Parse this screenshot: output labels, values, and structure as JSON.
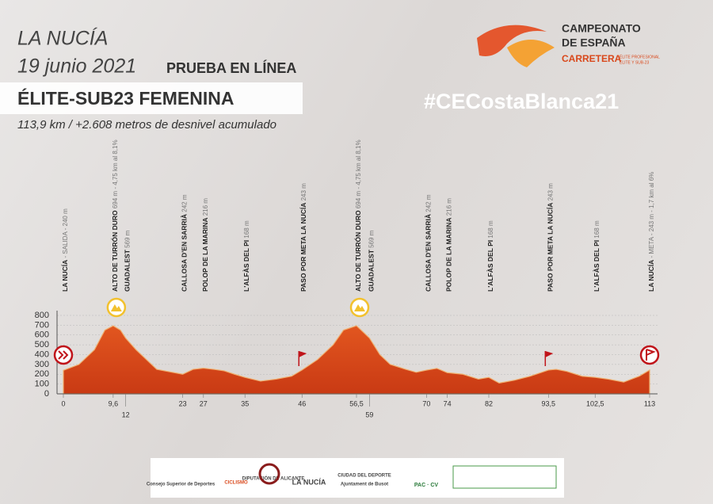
{
  "header": {
    "place": "LA NUCÍA",
    "date": "19 junio 2021",
    "race": "PRUEBA EN LÍNEA",
    "category": "ÉLITE-SUB23 FEMENINA",
    "distance": "113,9 km / +2.608 metros de desnivel acumulado",
    "hashtag": "#CECostaBlanca21",
    "logo": {
      "line1": "CAMPEONATO",
      "line2": "DE ESPAÑA",
      "line3": "CARRETERA",
      "line4": "ÉLITE PROFESIONAL",
      "line5": "ÉLITE Y SUB-23"
    }
  },
  "sponsors": [
    "Consejo Superior de Deportes",
    "CICLISMO",
    "DIPUTACIÓN DE ALICANTE",
    "LA NUCÍA",
    "CIUDAD DEL DEPORTE",
    "Ajuntament de Busot",
    "PAC · CV"
  ],
  "chart_data": {
    "type": "area",
    "color": "#d9481b",
    "x": [
      0,
      3,
      6,
      8,
      9.6,
      11,
      12,
      14,
      16,
      18,
      20,
      23,
      25,
      27,
      29,
      31,
      33,
      35,
      38,
      41,
      44,
      46,
      49,
      52,
      54,
      56.5,
      58,
      59,
      61,
      63,
      66,
      68,
      70,
      72,
      74,
      77,
      80,
      82,
      84,
      87,
      90,
      93.5,
      95,
      97,
      100,
      102.5,
      105,
      108,
      111,
      113
    ],
    "values": [
      240,
      300,
      450,
      650,
      694,
      650,
      569,
      450,
      350,
      250,
      230,
      200,
      250,
      262,
      250,
      235,
      200,
      168,
      130,
      150,
      180,
      243,
      350,
      500,
      650,
      694,
      620,
      569,
      400,
      300,
      250,
      220,
      242,
      260,
      216,
      200,
      150,
      168,
      110,
      140,
      180,
      243,
      250,
      230,
      180,
      168,
      150,
      120,
      180,
      243
    ],
    "xlim": [
      0,
      113
    ],
    "ylim": [
      0,
      800
    ],
    "yticks": [
      0,
      100,
      200,
      300,
      400,
      500,
      600,
      700,
      800
    ],
    "xticks": [
      0,
      {
        "value": 9.6,
        "label": "9,6"
      },
      12,
      23,
      27,
      35,
      46,
      {
        "value": 56.5,
        "label": "56,5"
      },
      59,
      70,
      74,
      82,
      {
        "value": 93.5,
        "label": "93,5"
      },
      {
        "value": 102.5,
        "label": "102,5"
      },
      113
    ],
    "grid": true,
    "annotations": [
      {
        "name": "LA NUCÍA",
        "detail": " - SALIDA - 240 m"
      },
      {
        "name": "ALTO DE TURRÓN DURO",
        "detail": " 694 m - 4,75 km al 8,1%"
      },
      {
        "name": "GUADALEST",
        "detail": " 569 m"
      },
      {
        "name": "CALLOSA D'EN SARRIÀ",
        "detail": " 242 m"
      },
      {
        "name": "POLOP DE LA MARINA",
        "detail": " 216 m"
      },
      {
        "name": "L'ALFÀS DEL PI",
        "detail": " 168 m"
      },
      {
        "name": "PASO POR META LA NUCÍA",
        "detail": " 243 m"
      },
      {
        "name": "ALTO DE TURRÓN DURO",
        "detail": " 694 m - 4,75 km al 8,1%"
      },
      {
        "name": "GUADALEST",
        "detail": " 569 m"
      },
      {
        "name": "CALLOSA D'EN SARRIÀ",
        "detail": " 242 m"
      },
      {
        "name": "POLOP DE LA MARINA",
        "detail": " 216 m"
      },
      {
        "name": "L'ALFÀS DEL PI",
        "detail": " 168 m"
      },
      {
        "name": "PASO POR META LA NUCÍA",
        "detail": " 243 m"
      },
      {
        "name": "L'ALFÀS DEL PI",
        "detail": " 168 m"
      },
      {
        "name": "LA NUCÍA",
        "detail": " - META - 243 m - 1,7 km al 6%"
      }
    ]
  }
}
